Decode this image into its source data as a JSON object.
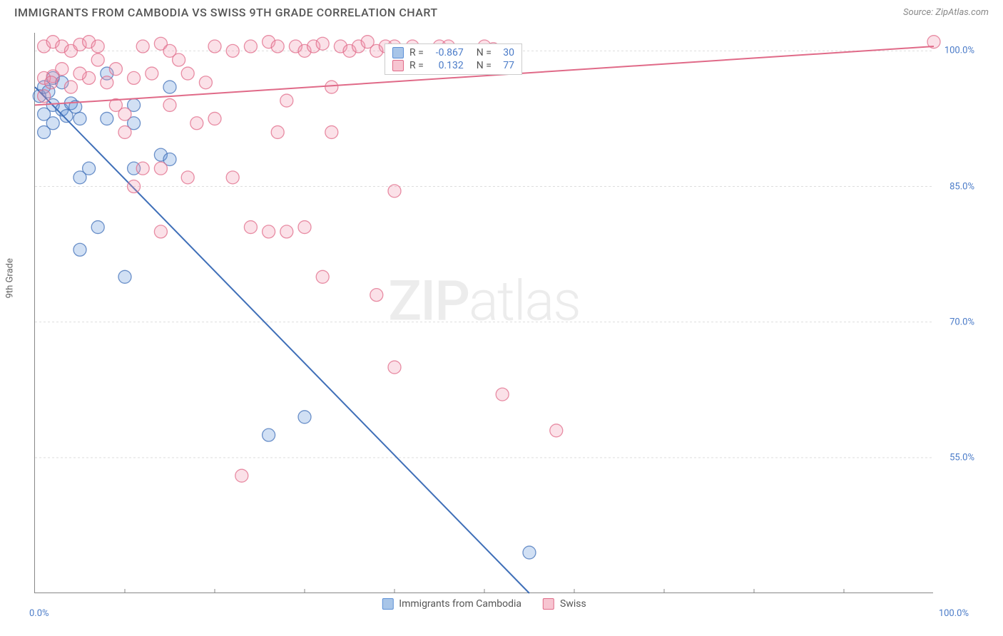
{
  "title": "IMMIGRANTS FROM CAMBODIA VS SWISS 9TH GRADE CORRELATION CHART",
  "source": "Source: ZipAtlas.com",
  "y_axis_label": "9th Grade",
  "watermark": {
    "bold": "ZIP",
    "light": "atlas"
  },
  "chart": {
    "type": "scatter",
    "background_color": "#ffffff",
    "grid_color": "#dddddd",
    "axis_color": "#888888",
    "xlim": [
      0,
      100
    ],
    "ylim": [
      40,
      102
    ],
    "x_ticks": [
      0,
      100
    ],
    "x_tick_labels": [
      "0.0%",
      "100.0%"
    ],
    "minor_x_ticks": [
      10,
      20,
      30,
      40,
      50,
      60,
      70,
      80,
      90
    ],
    "y_ticks": [
      55,
      70,
      85,
      100
    ],
    "y_tick_labels": [
      "55.0%",
      "70.0%",
      "85.0%",
      "100.0%"
    ],
    "marker_radius": 9,
    "marker_fill_opacity": 0.28,
    "marker_stroke_opacity": 0.75,
    "marker_stroke_width": 1.3,
    "trend_line_width": 2,
    "series": [
      {
        "name": "Immigrants from Cambodia",
        "color": "#5b8fd6",
        "stroke": "#3f6fb8",
        "r_value": "-0.867",
        "n_value": "30",
        "trend": {
          "x1": 0,
          "y1": 96,
          "x2": 55,
          "y2": 40
        },
        "points": [
          [
            0.5,
            95
          ],
          [
            1,
            96
          ],
          [
            1.5,
            95.5
          ],
          [
            2,
            97
          ],
          [
            1,
            93
          ],
          [
            2,
            94
          ],
          [
            3,
            96.5
          ],
          [
            3,
            93.5
          ],
          [
            3.5,
            92.8
          ],
          [
            4,
            94.2
          ],
          [
            5,
            92.5
          ],
          [
            4.5,
            93.8
          ],
          [
            8,
            97.5
          ],
          [
            5,
            86
          ],
          [
            6,
            87
          ],
          [
            8,
            92.5
          ],
          [
            11,
            92
          ],
          [
            11,
            94
          ],
          [
            14,
            88.5
          ],
          [
            15,
            88
          ],
          [
            15,
            96
          ],
          [
            11,
            87
          ],
          [
            5,
            78
          ],
          [
            10,
            75
          ],
          [
            7,
            80.5
          ],
          [
            26,
            57.5
          ],
          [
            30,
            59.5
          ],
          [
            55,
            44.5
          ],
          [
            1,
            91
          ],
          [
            2,
            92
          ]
        ]
      },
      {
        "name": "Swiss",
        "color": "#f094ab",
        "stroke": "#e06a88",
        "r_value": "0.132",
        "n_value": "77",
        "trend": {
          "x1": 0,
          "y1": 94,
          "x2": 100,
          "y2": 100.5
        },
        "points": [
          [
            1,
            100.5
          ],
          [
            2,
            101
          ],
          [
            3,
            100.5
          ],
          [
            4,
            100
          ],
          [
            5,
            100.7
          ],
          [
            6,
            101
          ],
          [
            7,
            100.5
          ],
          [
            11,
            97
          ],
          [
            12,
            100.5
          ],
          [
            13,
            97.5
          ],
          [
            14,
            100.8
          ],
          [
            15,
            100
          ],
          [
            16,
            99
          ],
          [
            17,
            97.5
          ],
          [
            19,
            96.5
          ],
          [
            15,
            94
          ],
          [
            9,
            94
          ],
          [
            10,
            93
          ],
          [
            20,
            100.5
          ],
          [
            22,
            100
          ],
          [
            24,
            100.5
          ],
          [
            26,
            101
          ],
          [
            27,
            100.5
          ],
          [
            28,
            94.5
          ],
          [
            29,
            100.5
          ],
          [
            30,
            100
          ],
          [
            31,
            100.5
          ],
          [
            32,
            100.8
          ],
          [
            33,
            96
          ],
          [
            34,
            100.5
          ],
          [
            35,
            100
          ],
          [
            36,
            100.5
          ],
          [
            37,
            101
          ],
          [
            38,
            100
          ],
          [
            39,
            100.5
          ],
          [
            40,
            100.5
          ],
          [
            42,
            100.5
          ],
          [
            43,
            100
          ],
          [
            45,
            100.5
          ],
          [
            46,
            100.5
          ],
          [
            48,
            100
          ],
          [
            50,
            100.5
          ],
          [
            51,
            100.2
          ],
          [
            100,
            101
          ],
          [
            18,
            92
          ],
          [
            20,
            92.5
          ],
          [
            22,
            86
          ],
          [
            27,
            91
          ],
          [
            28,
            80
          ],
          [
            30,
            80.5
          ],
          [
            33,
            91
          ],
          [
            24,
            80.5
          ],
          [
            26,
            80
          ],
          [
            14,
            87
          ],
          [
            10,
            91
          ],
          [
            17,
            86
          ],
          [
            11,
            85
          ],
          [
            12,
            87
          ],
          [
            14,
            80
          ],
          [
            32,
            75
          ],
          [
            23,
            53
          ],
          [
            38,
            73
          ],
          [
            40,
            84.5
          ],
          [
            40,
            65
          ],
          [
            52,
            62
          ],
          [
            58,
            58
          ],
          [
            6,
            97
          ],
          [
            8,
            96.5
          ],
          [
            9,
            98
          ],
          [
            4,
            96
          ],
          [
            5,
            97.5
          ],
          [
            7,
            99
          ],
          [
            3,
            98
          ],
          [
            2,
            97.2
          ],
          [
            1,
            97
          ],
          [
            1.8,
            96.5
          ],
          [
            1,
            95
          ]
        ]
      }
    ]
  },
  "correlation_box": {
    "rows": [
      {
        "swatch_fill": "#a8c5e8",
        "swatch_stroke": "#5b8fd6",
        "r_label": "R =",
        "r_val": "-0.867",
        "n_label": "N =",
        "n_val": "30"
      },
      {
        "swatch_fill": "#f7c5d1",
        "swatch_stroke": "#e06a88",
        "r_label": "R =",
        "r_val": "0.132",
        "n_label": "N =",
        "n_val": "77"
      }
    ]
  },
  "legend": [
    {
      "swatch_fill": "#a8c5e8",
      "swatch_stroke": "#5b8fd6",
      "label": "Immigrants from Cambodia"
    },
    {
      "swatch_fill": "#f7c5d1",
      "swatch_stroke": "#e06a88",
      "label": "Swiss"
    }
  ]
}
